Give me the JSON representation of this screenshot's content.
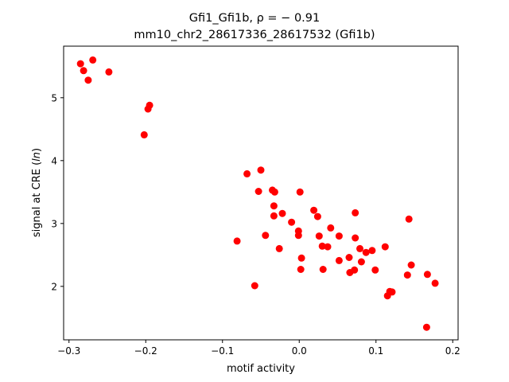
{
  "chart_data": {
    "type": "scatter",
    "title_line1": "Gfi1_Gfi1b, ρ = − 0.91",
    "title_line2": "mm10_chr2_28617336_28617532 (Gfi1b)",
    "xlabel": "motif activity",
    "ylabel": "signal at CRE (ln)",
    "xlim": [
      -0.307,
      0.207
    ],
    "ylim": [
      1.15,
      5.82
    ],
    "xticks": [
      -0.3,
      -0.2,
      -0.1,
      0.0,
      0.1,
      0.2
    ],
    "xtick_labels": [
      "−0.3",
      "−0.2",
      "−0.1",
      "0.0",
      "0.1",
      "0.2"
    ],
    "yticks": [
      2,
      3,
      4,
      5
    ],
    "ytick_labels": [
      "2",
      "3",
      "4",
      "5"
    ],
    "grid": false,
    "marker_color": "#ff0000",
    "points": [
      {
        "x": -0.285,
        "y": 5.54
      },
      {
        "x": -0.281,
        "y": 5.43
      },
      {
        "x": -0.269,
        "y": 5.6
      },
      {
        "x": -0.275,
        "y": 5.28
      },
      {
        "x": -0.248,
        "y": 5.41
      },
      {
        "x": -0.195,
        "y": 4.88
      },
      {
        "x": -0.197,
        "y": 4.82
      },
      {
        "x": -0.202,
        "y": 4.41
      },
      {
        "x": -0.068,
        "y": 3.79
      },
      {
        "x": -0.05,
        "y": 3.85
      },
      {
        "x": -0.053,
        "y": 3.51
      },
      {
        "x": -0.035,
        "y": 3.53
      },
      {
        "x": -0.032,
        "y": 3.5
      },
      {
        "x": -0.033,
        "y": 3.28
      },
      {
        "x": -0.033,
        "y": 3.12
      },
      {
        "x": -0.022,
        "y": 3.16
      },
      {
        "x": -0.01,
        "y": 3.02
      },
      {
        "x": 0.001,
        "y": 3.5
      },
      {
        "x": -0.001,
        "y": 2.88
      },
      {
        "x": -0.001,
        "y": 2.81
      },
      {
        "x": -0.044,
        "y": 2.81
      },
      {
        "x": -0.026,
        "y": 2.6
      },
      {
        "x": -0.081,
        "y": 2.72
      },
      {
        "x": -0.058,
        "y": 2.01
      },
      {
        "x": 0.003,
        "y": 2.45
      },
      {
        "x": 0.002,
        "y": 2.27
      },
      {
        "x": 0.019,
        "y": 3.21
      },
      {
        "x": 0.024,
        "y": 3.11
      },
      {
        "x": 0.026,
        "y": 2.8
      },
      {
        "x": 0.03,
        "y": 2.64
      },
      {
        "x": 0.031,
        "y": 2.27
      },
      {
        "x": 0.037,
        "y": 2.63
      },
      {
        "x": 0.041,
        "y": 2.93
      },
      {
        "x": 0.052,
        "y": 2.8
      },
      {
        "x": 0.052,
        "y": 2.41
      },
      {
        "x": 0.065,
        "y": 2.46
      },
      {
        "x": 0.066,
        "y": 2.22
      },
      {
        "x": 0.073,
        "y": 3.17
      },
      {
        "x": 0.073,
        "y": 2.77
      },
      {
        "x": 0.072,
        "y": 2.26
      },
      {
        "x": 0.079,
        "y": 2.6
      },
      {
        "x": 0.081,
        "y": 2.39
      },
      {
        "x": 0.087,
        "y": 2.54
      },
      {
        "x": 0.095,
        "y": 2.57
      },
      {
        "x": 0.099,
        "y": 2.26
      },
      {
        "x": 0.112,
        "y": 2.63
      },
      {
        "x": 0.115,
        "y": 1.85
      },
      {
        "x": 0.118,
        "y": 1.92
      },
      {
        "x": 0.121,
        "y": 1.91
      },
      {
        "x": 0.143,
        "y": 3.07
      },
      {
        "x": 0.141,
        "y": 2.18
      },
      {
        "x": 0.146,
        "y": 2.34
      },
      {
        "x": 0.167,
        "y": 2.19
      },
      {
        "x": 0.177,
        "y": 2.05
      },
      {
        "x": 0.166,
        "y": 1.35
      }
    ]
  }
}
